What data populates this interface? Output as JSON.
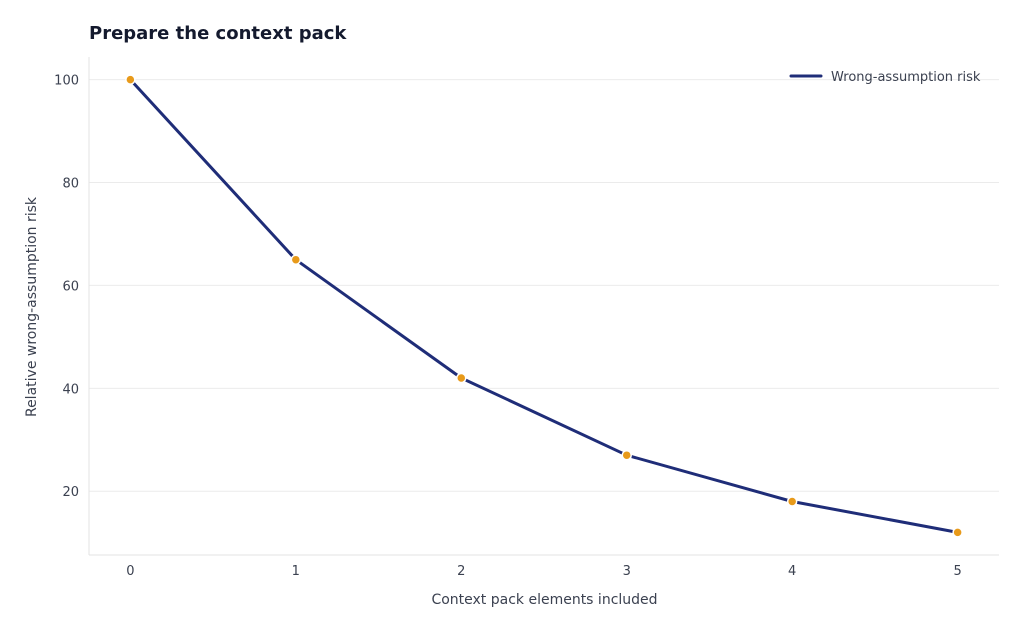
{
  "chart_data": {
    "type": "line",
    "title": "Prepare the context pack",
    "xlabel": "Context pack elements included",
    "ylabel": "Relative wrong-assumption risk",
    "x": [
      0,
      1,
      2,
      3,
      4,
      5
    ],
    "xlim": [
      -0.25,
      5.25
    ],
    "ylim": [
      7.6,
      104.4
    ],
    "xticks": [
      "0",
      "1",
      "2",
      "3",
      "4",
      "5"
    ],
    "yticks": [
      "20",
      "40",
      "60",
      "80",
      "100"
    ],
    "grid": "horizontal",
    "legend_position": "top-right",
    "series": [
      {
        "name": "Wrong-assumption risk",
        "values": [
          100,
          65,
          42,
          27,
          18,
          12
        ],
        "line_color": "#1f2d78",
        "marker_color": "#e89a1a"
      }
    ]
  }
}
